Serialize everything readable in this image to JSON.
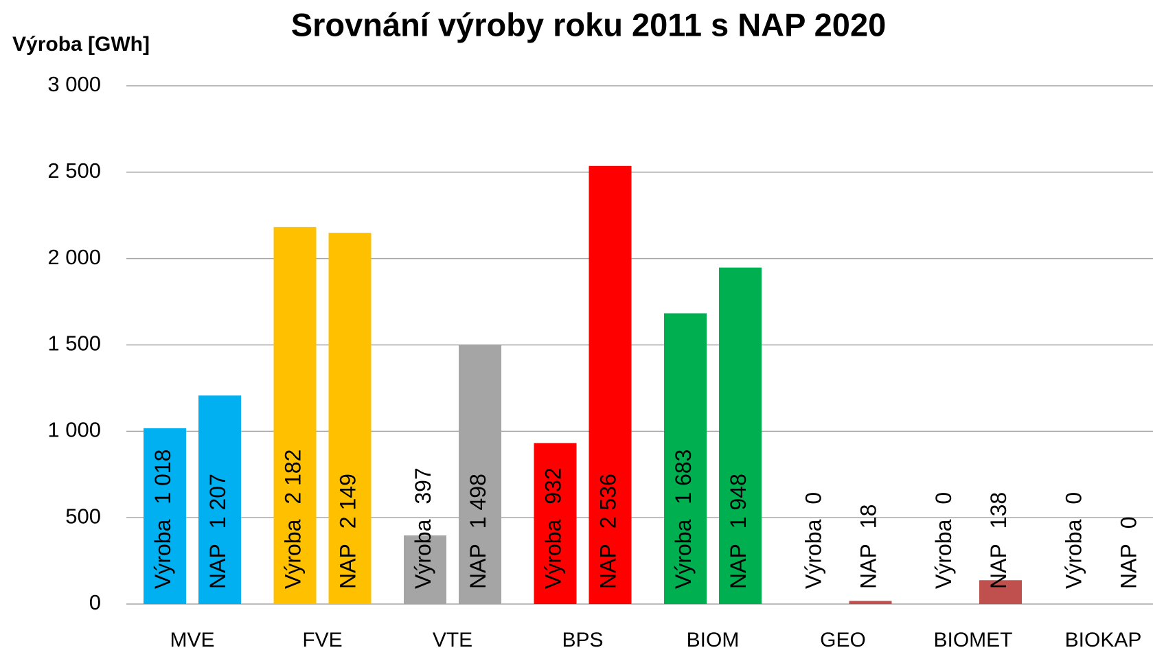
{
  "chart_data": {
    "type": "bar",
    "title": "Srovnání  výroby roku 2011 s NAP 2020",
    "y_label": "Výroba [GWh]",
    "categories": [
      "MVE",
      "FVE",
      "VTE",
      "BPS",
      "BIOM",
      "GEO",
      "BIOMET",
      "BIOKAP"
    ],
    "colors": [
      "#00b0f0",
      "#ffc000",
      "#a5a5a5",
      "#ff0000",
      "#00b050",
      "#c0504d",
      "#c0504d",
      "#c0504d"
    ],
    "series": [
      {
        "name": "Výroba",
        "values": [
          1018,
          2182,
          397,
          932,
          1683,
          0,
          0,
          0
        ],
        "value_labels": [
          "1 018",
          "2 182",
          "397",
          "932",
          "1 683",
          "0",
          "0",
          "0"
        ]
      },
      {
        "name": "NAP",
        "values": [
          1207,
          2149,
          1498,
          2536,
          1948,
          18,
          138,
          0
        ],
        "value_labels": [
          "1 207",
          "2 149",
          "1 498",
          "2 536",
          "1 948",
          "18",
          "138",
          "0"
        ]
      }
    ],
    "ylim": [
      0,
      3000
    ],
    "yticks": [
      0,
      500,
      {
        "value": 1000,
        "label": "1 000"
      },
      {
        "value": 1500,
        "label": "1 500"
      },
      {
        "value": 2000,
        "label": "2 000"
      },
      {
        "value": 2500,
        "label": "2 500"
      },
      {
        "value": 3000,
        "label": "3 000"
      }
    ],
    "grid": true
  }
}
